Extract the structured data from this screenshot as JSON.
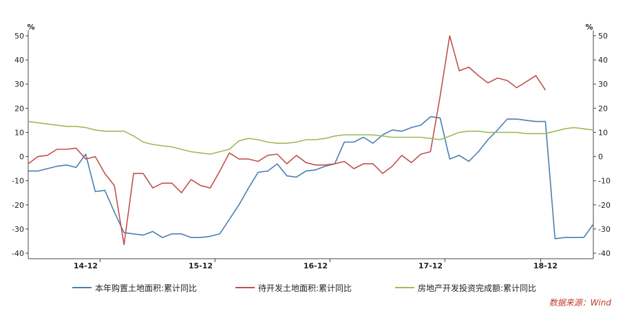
{
  "chart_data": {
    "type": "line",
    "y_unit_left": "%",
    "y_unit_right": "%",
    "ylim": [
      -40,
      50
    ],
    "yticks": [
      -40,
      -30,
      -20,
      -10,
      0,
      10,
      20,
      30,
      40,
      50
    ],
    "x_tick_labels": [
      "14-12",
      "15-12",
      "16-12",
      "17-12",
      "18-12"
    ],
    "grid": false,
    "legend_position": "bottom",
    "source": "数据来源：Wind",
    "series": [
      {
        "name": "本年购置土地面积:累计同比",
        "color": "#4a7eb0",
        "values": [
          -6,
          -6,
          -5,
          -4,
          -3.5,
          -4.5,
          1,
          -14.5,
          -14,
          -23,
          -31.5,
          -32,
          -32.5,
          -31,
          -33.5,
          -32,
          -32,
          -33.5,
          -33.5,
          -33,
          -32,
          -26,
          -20,
          -13,
          -6.5,
          -6,
          -3,
          -8,
          -8.5,
          -6,
          -5.5,
          -4,
          -3,
          6,
          6,
          8,
          5.5,
          9,
          11,
          10.5,
          12,
          13,
          16.5,
          16,
          -1,
          0.5,
          -2,
          2,
          7,
          11,
          15.5,
          15.5,
          15,
          14.5,
          14.5,
          -34,
          -33.5,
          -33.5,
          -33.5,
          -28
        ]
      },
      {
        "name": "待开发土地面积:累计同比",
        "color": "#c0504d",
        "values": [
          -3,
          0,
          0.5,
          3,
          3,
          3.5,
          -1,
          0,
          -7,
          -12,
          -36.5,
          -7,
          -7,
          -13,
          -11,
          -11,
          -15,
          -9.5,
          -12,
          -13,
          -6,
          1.5,
          -1,
          -1,
          -2,
          0.5,
          1,
          -3,
          0.5,
          -2.5,
          -3.5,
          -3.5,
          -3,
          -2,
          -5,
          -3,
          -3,
          -7,
          -4,
          0.5,
          -2.5,
          1,
          2,
          25,
          50,
          35.5,
          37,
          33.5,
          30.5,
          32.5,
          31.5,
          28.5,
          31,
          33.5,
          27.5
        ]
      },
      {
        "name": "房地产开发投资完成额:累计同比",
        "color": "#9bbb59",
        "values": [
          14.5,
          14,
          13.5,
          13,
          12.5,
          12.5,
          12,
          11,
          10.5,
          10.5,
          10.5,
          8.5,
          6,
          5,
          4.5,
          4,
          3,
          2,
          1.5,
          1,
          2,
          3,
          6.5,
          7.5,
          7,
          6,
          5.5,
          5.5,
          6,
          7,
          7,
          7.5,
          8.5,
          9,
          9,
          9,
          9,
          8.5,
          8,
          8,
          8,
          8,
          7.5,
          7,
          8.5,
          10,
          10.5,
          10.5,
          10,
          10,
          10,
          10,
          9.5,
          9.5,
          9.5,
          10.5,
          11.5,
          12,
          11.5,
          11
        ]
      }
    ]
  }
}
